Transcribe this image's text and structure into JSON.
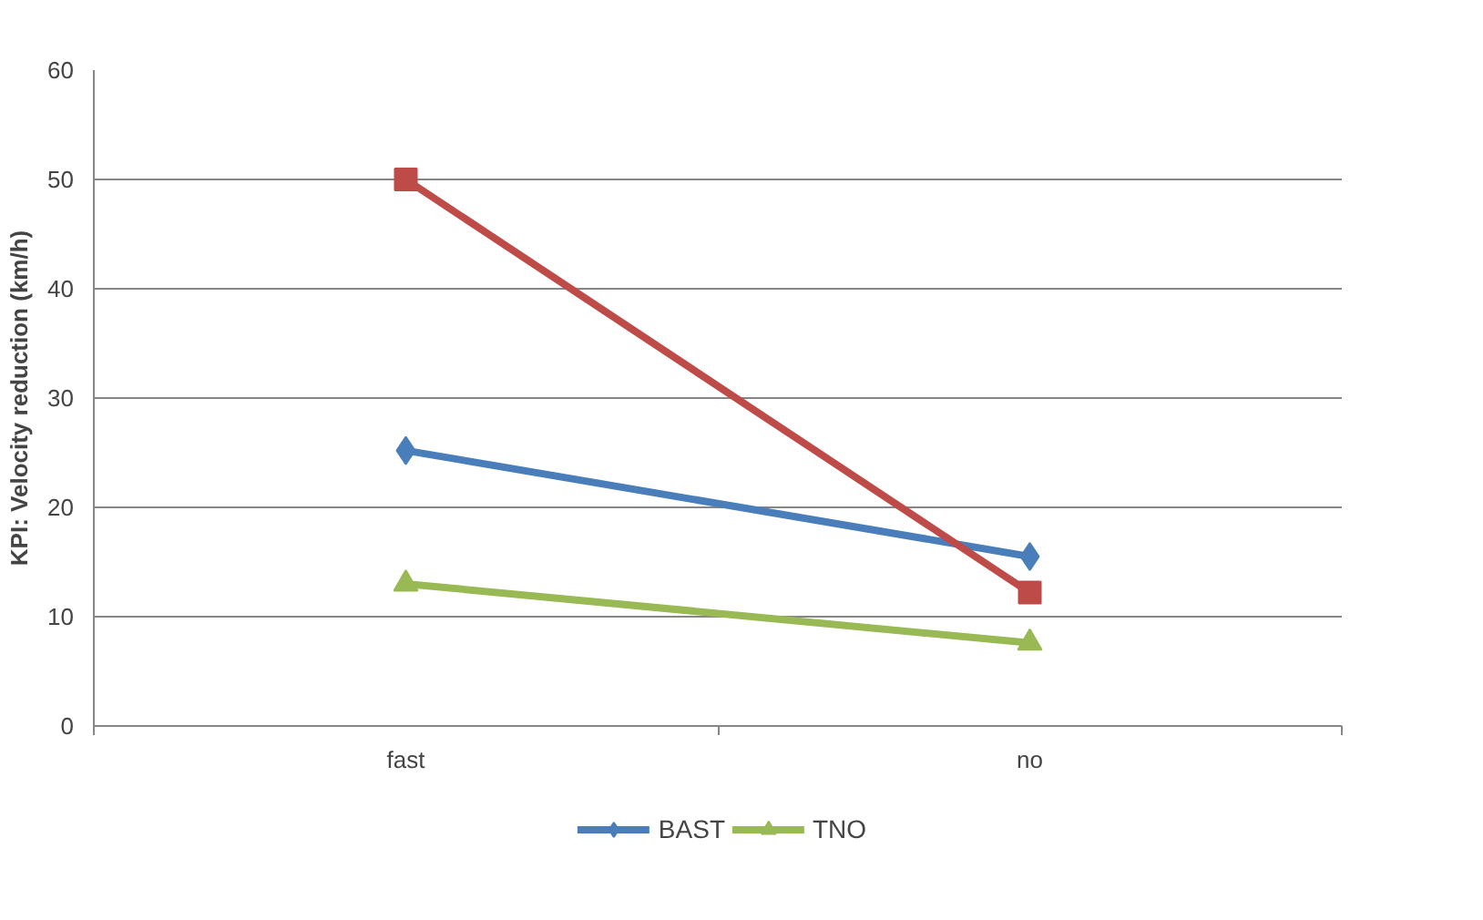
{
  "chart_data": {
    "type": "line",
    "ylabel": "KPI: Velocity reduction (km/h)",
    "categories": [
      "fast",
      "no"
    ],
    "series": [
      {
        "name": "BAST",
        "color": "#4a7ebb",
        "marker": "diamond",
        "values": [
          25.2,
          15.5
        ]
      },
      {
        "color": "#be4b48",
        "marker": "square",
        "values": [
          50,
          12.2
        ]
      },
      {
        "name": "TNO",
        "color": "#98b954",
        "marker": "triangle",
        "values": [
          13,
          7.6
        ]
      }
    ],
    "ylim": [
      0,
      60
    ],
    "yticks": [
      0,
      10,
      20,
      30,
      40,
      50,
      60
    ],
    "grid": "y",
    "legend": "bottom"
  }
}
